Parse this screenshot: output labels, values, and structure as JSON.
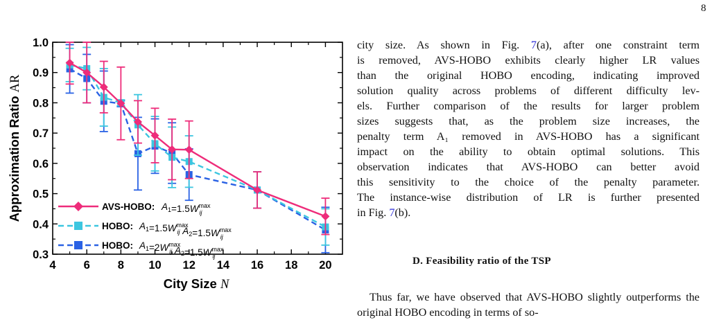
{
  "page": {
    "number": "8"
  },
  "chart_data": {
    "type": "line",
    "xlabel": "City Size N",
    "ylabel": "Approximation Ratio AR",
    "xlim": [
      4,
      21
    ],
    "ylim": [
      0.3,
      1.0
    ],
    "x_ticks": [
      "4",
      "6",
      "8",
      "10",
      "12",
      "14",
      "16",
      "18",
      "20"
    ],
    "y_ticks": [
      "0.3",
      "0.4",
      "0.5",
      "0.6",
      "0.7",
      "0.8",
      "0.9",
      "1.0"
    ],
    "legend_position": "bottom-left",
    "series": [
      {
        "name": "AVS-HOBO: A1=1.5Wijmax",
        "legend_label": "AVS-HOBO:",
        "legend_formula": "A1=1.5W_ij^max",
        "color": "#ee2c7a",
        "marker": "diamond",
        "line": "solid",
        "x": [
          5,
          6,
          7,
          8,
          9,
          10,
          11,
          12,
          16,
          20
        ],
        "y": [
          0.932,
          0.9,
          0.852,
          0.798,
          0.737,
          0.692,
          0.646,
          0.645,
          0.512,
          0.425
        ],
        "err": [
          0.07,
          0.1,
          0.085,
          0.12,
          0.07,
          0.09,
          0.1,
          0.095,
          0.06,
          0.06
        ]
      },
      {
        "name": "HOBO: A1=1.5Wijmax A2=1.5Wijmax",
        "legend_label": "HOBO:",
        "legend_formula": "A1=1.5W_ij^max  A2=1.5W_ij^max",
        "color": "#3cc6e0",
        "marker": "square",
        "line": "dashed",
        "x": [
          5,
          6,
          7,
          8,
          9,
          10,
          11,
          12,
          16,
          20
        ],
        "y": [
          0.925,
          0.913,
          0.818,
          0.8,
          0.727,
          0.665,
          0.62,
          0.606,
          0.512,
          0.39
        ],
        "err": [
          0.055,
          0.07,
          0.095,
          0.01,
          0.1,
          0.09,
          0.1,
          0.085,
          0.06,
          0.06
        ]
      },
      {
        "name": "HOBO: A1=2Wijmax A2=1.5Wijmax",
        "legend_label": "HOBO:",
        "legend_formula": "A1=2W_ij^max  A2=1.5W_ij^max",
        "color": "#2a62e4",
        "marker": "square",
        "line": "dashed",
        "x": [
          5,
          6,
          7,
          8,
          9,
          10,
          11,
          12,
          16,
          20
        ],
        "y": [
          0.912,
          0.88,
          0.805,
          0.797,
          0.632,
          0.657,
          0.634,
          0.563,
          0.512,
          0.38
        ],
        "err": [
          0.08,
          0.08,
          0.1,
          0.01,
          0.12,
          0.09,
          0.1,
          0.085,
          0.06,
          0.075
        ]
      }
    ]
  },
  "body": {
    "para1_lines": [
      "city size. As shown in Fig. |7|(a), after one constraint term",
      "is removed, AVS-HOBO exhibits clearly higher LR values",
      "than the original HOBO encoding, indicating improved",
      "solution quality across problems of different difficulty lev-",
      "els. Further comparison of the results for larger problem",
      "sizes suggests that, as the problem size increases, the",
      "penalty term A₁ removed in AVS-HOBO has a significant",
      "impact on the ability to obtain optimal solutions. This",
      "observation indicates that AVS-HOBO can better avoid",
      "this sensitivity to the choice of the penalty parameter.",
      "The instance-wise distribution of LR is further presented",
      "in Fig. |7|(b)."
    ],
    "section_heading": "D.   Feasibility ratio of the TSP",
    "para2": "Thus far, we have observed that AVS-HOBO slightly outperforms the original HOBO encoding in terms of so-"
  }
}
